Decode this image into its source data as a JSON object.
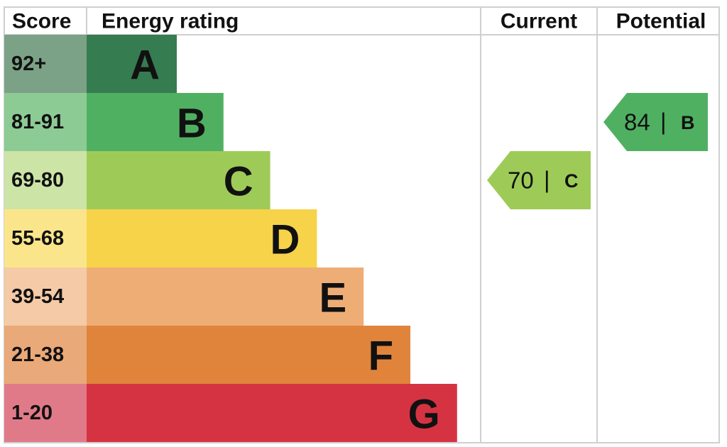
{
  "headers": {
    "score": "Score",
    "rating": "Energy rating",
    "current": "Current",
    "potential": "Potential"
  },
  "bands": [
    {
      "score": "92+",
      "letter": "A",
      "color": "#367c51",
      "score_color": "#7ba286"
    },
    {
      "score": "81-91",
      "letter": "B",
      "color": "#50b062",
      "score_color": "#8dcb94"
    },
    {
      "score": "69-80",
      "letter": "C",
      "color": "#9ecb58",
      "score_color": "#cde4a7"
    },
    {
      "score": "55-68",
      "letter": "D",
      "color": "#f7d34a",
      "score_color": "#fbe58a"
    },
    {
      "score": "39-54",
      "letter": "E",
      "color": "#efad76",
      "score_color": "#f5caa6"
    },
    {
      "score": "21-38",
      "letter": "F",
      "color": "#e0843c",
      "score_color": "#eaa978"
    },
    {
      "score": "1-20",
      "letter": "G",
      "color": "#d63342",
      "score_color": "#e07a89"
    }
  ],
  "current": {
    "value": 70,
    "separator": "|",
    "letter": "C"
  },
  "potential": {
    "value": 84,
    "separator": "|",
    "letter": "B"
  }
}
